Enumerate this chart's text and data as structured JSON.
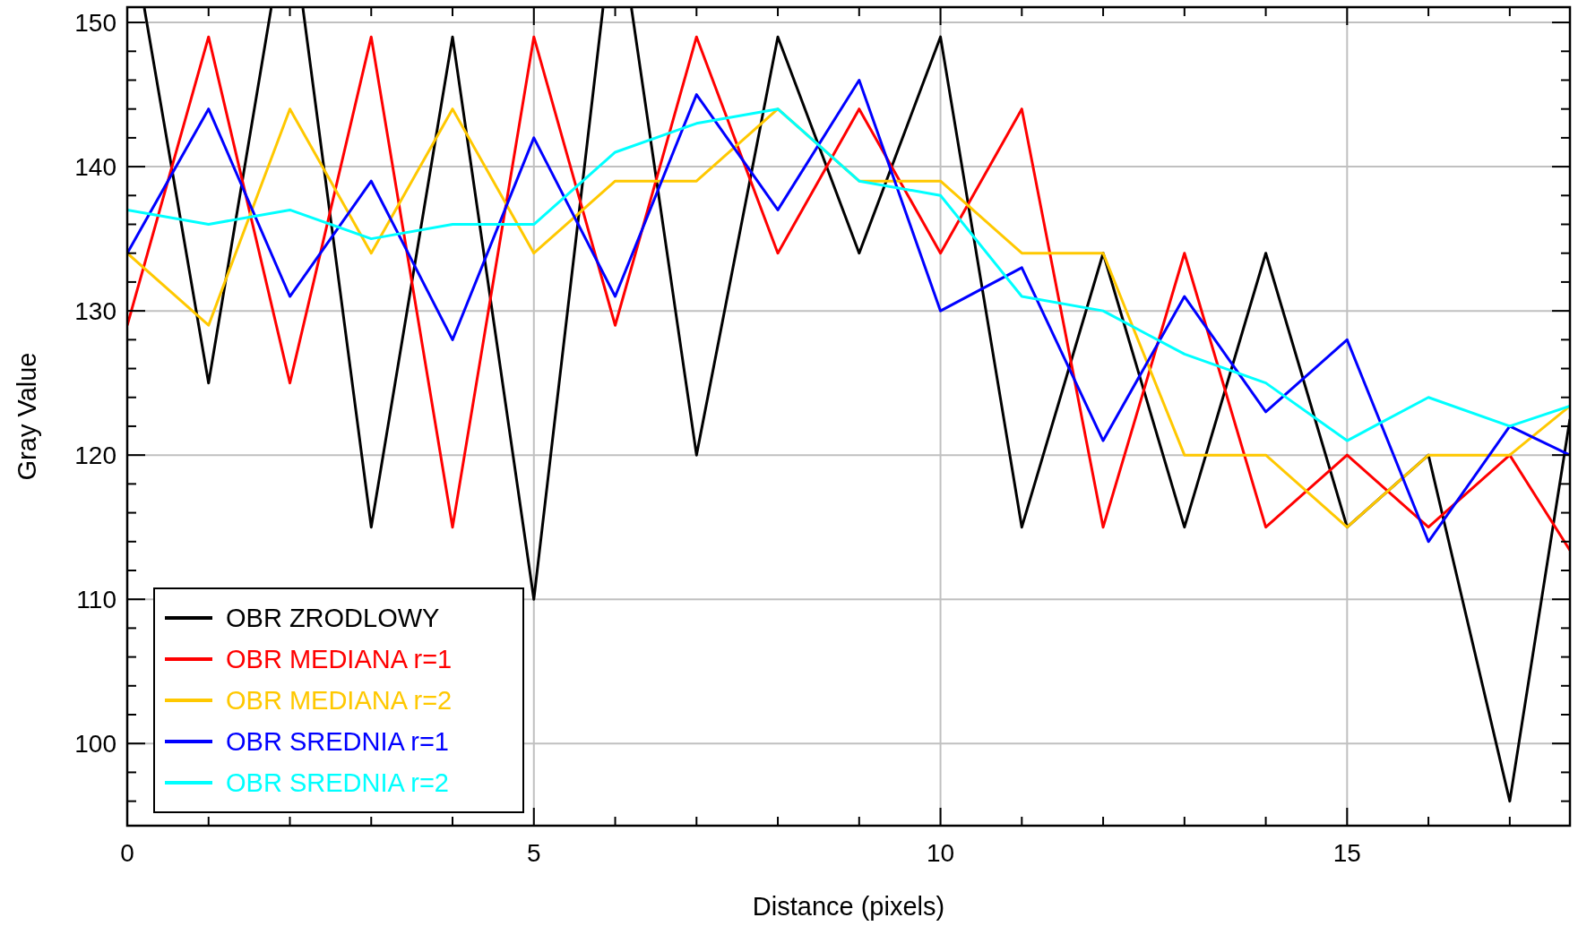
{
  "chart_data": {
    "type": "line",
    "xlabel": "Distance (pixels)",
    "ylabel": "Gray Value",
    "xlim": [
      0,
      17.74
    ],
    "ylim": [
      94.3,
      151.06
    ],
    "xticks": [
      0,
      {
        "value": 1,
        "label": null
      },
      {
        "value": 2,
        "label": null
      },
      {
        "value": 3,
        "label": null
      },
      {
        "value": 4,
        "label": null
      },
      5,
      {
        "value": 6,
        "label": null
      },
      {
        "value": 7,
        "label": null
      },
      {
        "value": 8,
        "label": null
      },
      {
        "value": 9,
        "label": null
      },
      10,
      {
        "value": 11,
        "label": null
      },
      {
        "value": 12,
        "label": null
      },
      {
        "value": 13,
        "label": null
      },
      {
        "value": 14,
        "label": null
      },
      15,
      {
        "value": 16,
        "label": null
      },
      {
        "value": 17,
        "label": null
      }
    ],
    "yticks": [
      {
        "value": 96,
        "label": null
      },
      {
        "value": 98,
        "label": null
      },
      100,
      {
        "value": 102,
        "label": null
      },
      {
        "value": 104,
        "label": null
      },
      {
        "value": 106,
        "label": null
      },
      {
        "value": 108,
        "label": null
      },
      110,
      {
        "value": 112,
        "label": null
      },
      {
        "value": 114,
        "label": null
      },
      {
        "value": 116,
        "label": null
      },
      {
        "value": 118,
        "label": null
      },
      120,
      {
        "value": 122,
        "label": null
      },
      {
        "value": 124,
        "label": null
      },
      {
        "value": 126,
        "label": null
      },
      {
        "value": 128,
        "label": null
      },
      130,
      {
        "value": 132,
        "label": null
      },
      {
        "value": 134,
        "label": null
      },
      {
        "value": 136,
        "label": null
      },
      {
        "value": 138,
        "label": null
      },
      140,
      {
        "value": 142,
        "label": null
      },
      {
        "value": 144,
        "label": null
      },
      {
        "value": 146,
        "label": null
      },
      {
        "value": 148,
        "label": null
      },
      150
    ],
    "x": [
      0,
      1,
      2,
      3,
      4,
      5,
      6,
      7,
      8,
      9,
      10,
      11,
      12,
      13,
      14,
      15,
      16,
      17,
      17.74
    ],
    "grid": true,
    "legend": "bottom left",
    "marker": "none",
    "line_style": "solid",
    "series": [
      {
        "name": "OBR ZRODLOWY",
        "color": "#000000",
        "x": [
          0.21,
          1,
          1.77,
          1.97,
          2.16,
          3,
          4,
          5,
          5.85,
          6.02,
          6.2,
          7,
          8,
          9,
          10,
          11,
          12,
          13,
          14,
          15,
          16,
          17,
          17.74
        ],
        "values": [
          151,
          125,
          151,
          null,
          151,
          115,
          149,
          110,
          151,
          null,
          151,
          120,
          149,
          134,
          149,
          115,
          134,
          115,
          134,
          115,
          120,
          96,
          122.5
        ]
      },
      {
        "name": "OBR MEDIANA r=1",
        "color": "#ff0000",
        "values": [
          129,
          149,
          125,
          149,
          115,
          149,
          129,
          149,
          134,
          144,
          134,
          144,
          115,
          134,
          115,
          120,
          115,
          120,
          113.4
        ]
      },
      {
        "name": "OBR MEDIANA r=2",
        "color": "#ffc800",
        "values": [
          134,
          129,
          144,
          134,
          144,
          134,
          139,
          139,
          144,
          139,
          139,
          134,
          134,
          120,
          120,
          115,
          120,
          120,
          123.4
        ]
      },
      {
        "name": "OBR SREDNIA r=1",
        "color": "#0000ff",
        "values": [
          134,
          144,
          131,
          139,
          128,
          142,
          131,
          145,
          137,
          146,
          130,
          133,
          121,
          131,
          123,
          128,
          114,
          122,
          120
        ]
      },
      {
        "name": "OBR SREDNIA r=2",
        "color": "#00ffff",
        "values": [
          137,
          136,
          137,
          135,
          136,
          136,
          141,
          143,
          144,
          139,
          138,
          131,
          130,
          127,
          125,
          121,
          124,
          122,
          123.4
        ]
      }
    ]
  }
}
